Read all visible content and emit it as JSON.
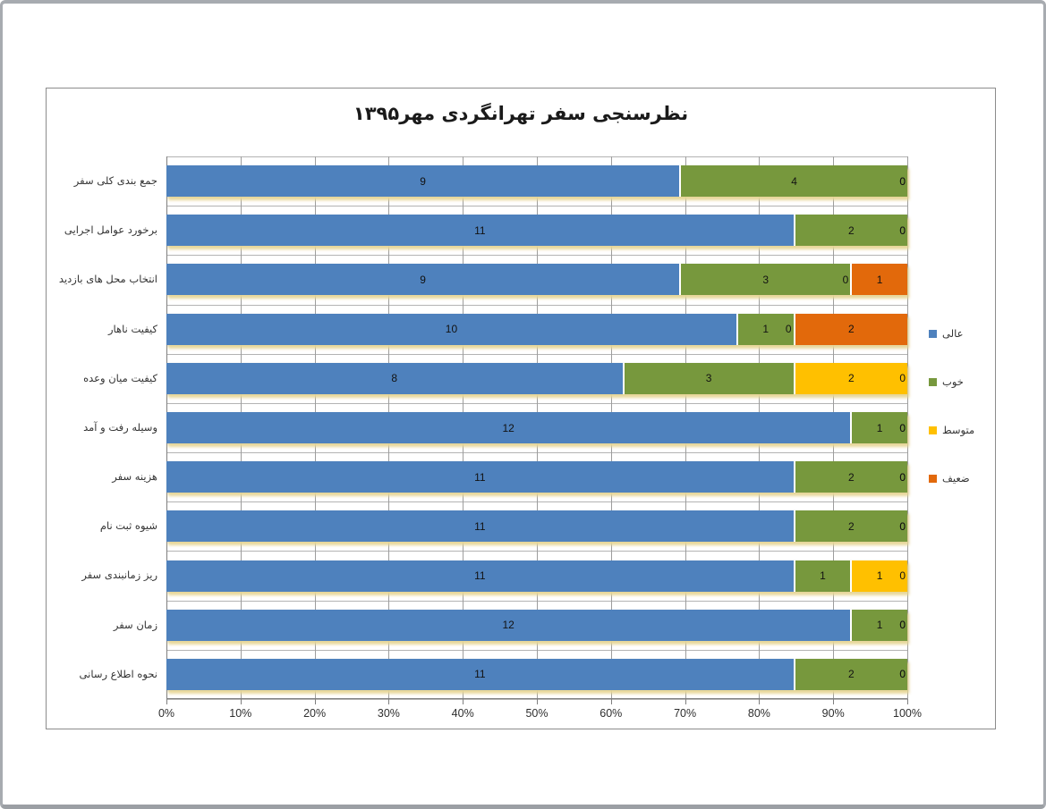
{
  "chart_data": {
    "type": "bar",
    "orientation": "horizontal",
    "stacked": "100%",
    "title": "نظرسنجی سفر تهرانگردی مهر۱۳۹۵",
    "categories": [
      "جمع بندی کلی سفر",
      "برخورد عوامل اجرایی",
      "انتخاب محل های بازدید",
      "کیفیت ناهار",
      "کیفیت میان وعده",
      "وسیله رفت و آمد",
      "هزینه سفر",
      "شیوه ثبت نام",
      "ریز زمانبندی سفر",
      "زمان سفر",
      "نحوه اطلاع رسانی"
    ],
    "series": [
      {
        "name": "عالی",
        "color": "#4E81BD",
        "values": [
          9,
          11,
          9,
          10,
          8,
          12,
          11,
          11,
          11,
          12,
          11
        ]
      },
      {
        "name": "خوب",
        "color": "#77983D",
        "values": [
          4,
          2,
          3,
          1,
          3,
          1,
          2,
          2,
          1,
          1,
          2
        ]
      },
      {
        "name": "متوسط",
        "color": "#FFC000",
        "values": [
          0,
          0,
          0,
          0,
          2,
          0,
          0,
          0,
          1,
          0,
          0
        ]
      },
      {
        "name": "ضعیف",
        "color": "#E2690B",
        "values": [
          0,
          0,
          1,
          2,
          0,
          0,
          0,
          0,
          0,
          0,
          0
        ]
      }
    ],
    "x_axis": {
      "tick_labels": [
        "0%",
        "10%",
        "20%",
        "30%",
        "40%",
        "50%",
        "60%",
        "70%",
        "80%",
        "90%",
        "100%"
      ],
      "min": "0%",
      "max": "100%"
    },
    "legend": {
      "position": "right",
      "labels": [
        "عالی",
        "خوب",
        "متوسط",
        "ضعیف"
      ]
    },
    "grid": "vertical major every 10% plus category boundary lines"
  }
}
